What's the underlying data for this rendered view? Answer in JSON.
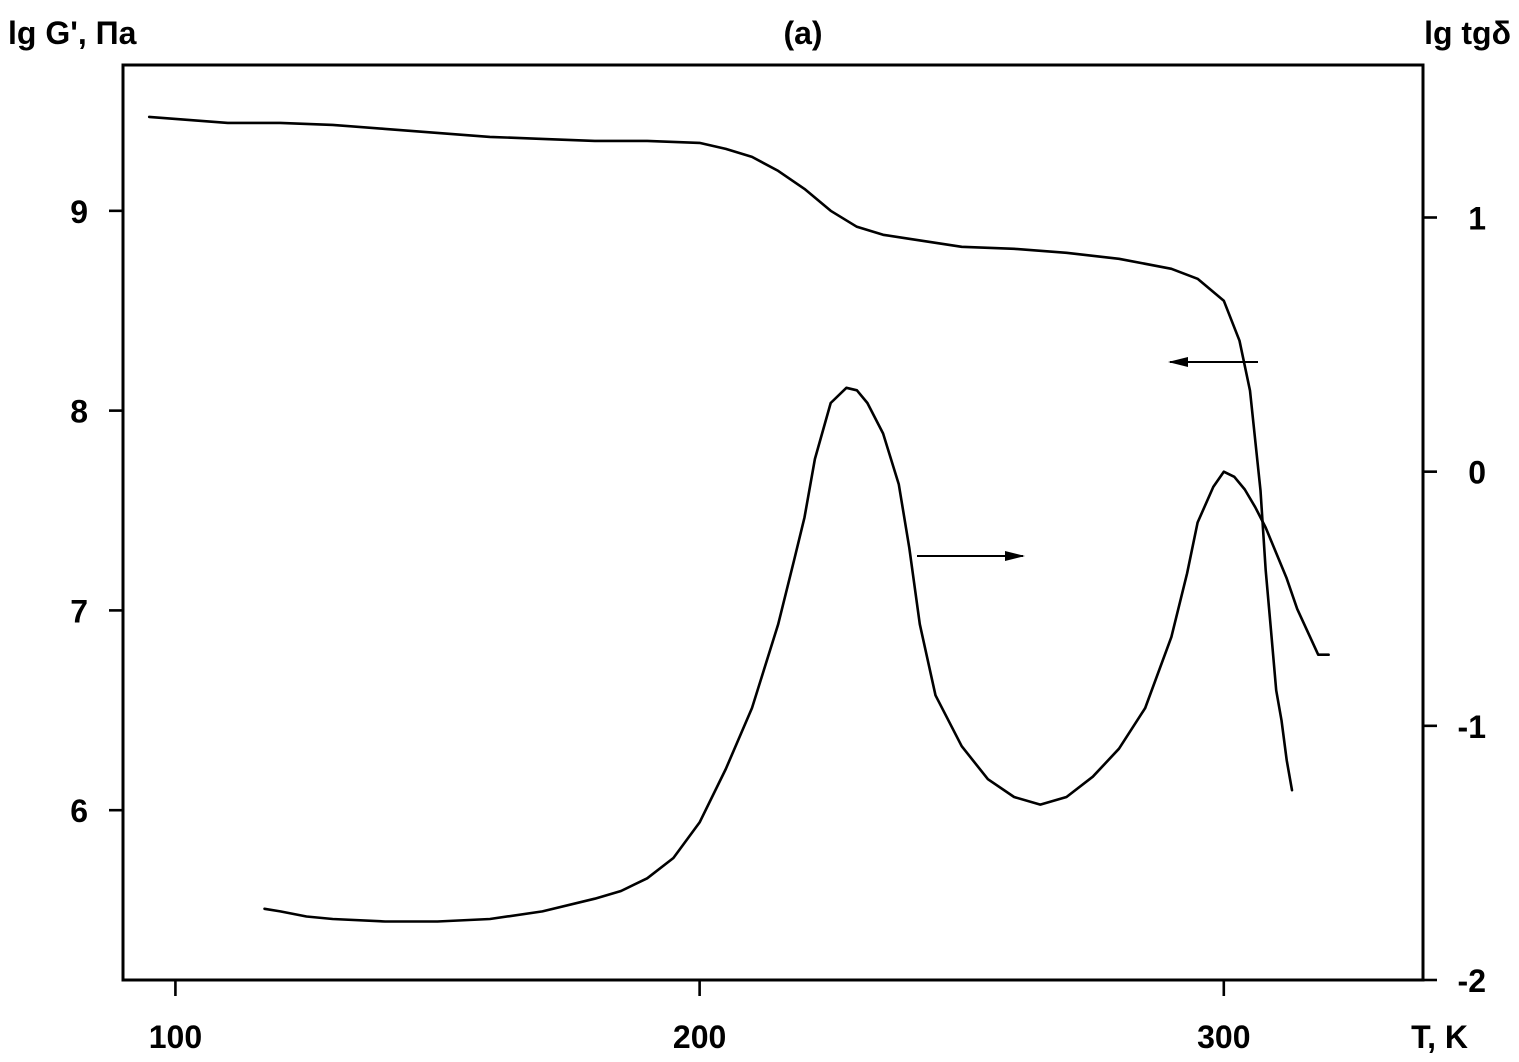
{
  "chart_data": {
    "type": "line",
    "title": "(a)",
    "xlabel": "T, K",
    "ylabel_left": "lg G', Па",
    "ylabel_right": "lg tgδ",
    "xlim": [
      90,
      338
    ],
    "ylim_left": [
      5.15,
      9.73
    ],
    "ylim_right": [
      -2.0,
      1.6
    ],
    "grid": false,
    "x_ticks": [
      100,
      200,
      300
    ],
    "y_left_ticks": [
      6,
      7,
      8,
      9
    ],
    "y_right_ticks": [
      -2,
      -1,
      0,
      1
    ],
    "series": [
      {
        "axis": "left",
        "arrow": "left",
        "x": [
          95,
          100,
          110,
          120,
          130,
          140,
          150,
          160,
          170,
          180,
          190,
          200,
          205,
          210,
          215,
          220,
          225,
          230,
          235,
          240,
          245,
          250,
          260,
          270,
          280,
          290,
          295,
          300,
          303,
          305,
          307,
          308,
          309,
          310,
          311,
          312,
          313
        ],
        "y": [
          9.47,
          9.46,
          9.44,
          9.44,
          9.43,
          9.41,
          9.39,
          9.37,
          9.36,
          9.35,
          9.35,
          9.34,
          9.31,
          9.27,
          9.2,
          9.11,
          9.0,
          8.92,
          8.88,
          8.86,
          8.84,
          8.82,
          8.81,
          8.79,
          8.76,
          8.71,
          8.66,
          8.55,
          8.35,
          8.1,
          7.6,
          7.2,
          6.9,
          6.6,
          6.45,
          6.25,
          6.1
        ]
      },
      {
        "axis": "right",
        "arrow": "right",
        "x": [
          117,
          120,
          125,
          130,
          140,
          150,
          160,
          170,
          180,
          185,
          190,
          195,
          200,
          205,
          210,
          215,
          218,
          220,
          222,
          225,
          228,
          230,
          232,
          235,
          238,
          240,
          242,
          245,
          250,
          255,
          260,
          265,
          270,
          275,
          280,
          285,
          290,
          293,
          295,
          298,
          300,
          302,
          304,
          306,
          308,
          310,
          312,
          314,
          316,
          318,
          320
        ],
        "y": [
          -1.72,
          -1.73,
          -1.75,
          -1.76,
          -1.77,
          -1.77,
          -1.76,
          -1.73,
          -1.68,
          -1.65,
          -1.6,
          -1.52,
          -1.38,
          -1.17,
          -0.93,
          -0.6,
          -0.35,
          -0.18,
          0.05,
          0.27,
          0.33,
          0.32,
          0.27,
          0.15,
          -0.05,
          -0.3,
          -0.6,
          -0.88,
          -1.08,
          -1.21,
          -1.28,
          -1.31,
          -1.28,
          -1.2,
          -1.09,
          -0.93,
          -0.65,
          -0.4,
          -0.2,
          -0.06,
          0.0,
          -0.02,
          -0.07,
          -0.14,
          -0.22,
          -0.32,
          -0.42,
          -0.54,
          -0.63,
          -0.72,
          -0.72
        ]
      }
    ]
  }
}
